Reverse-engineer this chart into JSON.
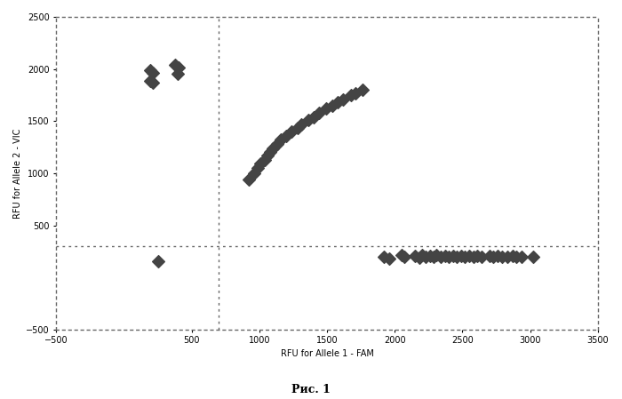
{
  "title": "Рис. 1",
  "xlabel": "RFU for Allele 1 - FAM",
  "ylabel": "RFU for Allele 2 - VIC",
  "xlim": [
    -500,
    3500
  ],
  "ylim": [
    -500,
    2500
  ],
  "xticks": [
    -500,
    500,
    1000,
    1500,
    2000,
    2500,
    3000,
    3500
  ],
  "yticks": [
    -500,
    500,
    1000,
    1500,
    2000,
    2500
  ],
  "hline": 300,
  "vline": 700,
  "scatter_color": "#444444",
  "markersize": 7,
  "cluster1": [
    [
      195,
      1990
    ],
    [
      210,
      1960
    ],
    [
      195,
      1890
    ],
    [
      210,
      1870
    ],
    [
      380,
      2040
    ],
    [
      400,
      2010
    ],
    [
      395,
      1950
    ]
  ],
  "cluster2": [
    [
      920,
      940
    ],
    [
      960,
      1000
    ],
    [
      990,
      1050
    ],
    [
      1010,
      1090
    ],
    [
      1040,
      1130
    ],
    [
      1060,
      1170
    ],
    [
      1080,
      1200
    ],
    [
      1100,
      1240
    ],
    [
      1130,
      1280
    ],
    [
      1160,
      1320
    ],
    [
      1200,
      1360
    ],
    [
      1240,
      1400
    ],
    [
      1280,
      1430
    ],
    [
      1310,
      1470
    ],
    [
      1360,
      1510
    ],
    [
      1400,
      1540
    ],
    [
      1440,
      1580
    ],
    [
      1490,
      1620
    ],
    [
      1540,
      1650
    ],
    [
      1580,
      1680
    ],
    [
      1620,
      1710
    ],
    [
      1680,
      1750
    ],
    [
      1710,
      1770
    ],
    [
      1760,
      1800
    ]
  ],
  "cluster3": [
    [
      1920,
      195
    ],
    [
      1960,
      180
    ],
    [
      2050,
      215
    ],
    [
      2070,
      195
    ],
    [
      2150,
      205
    ],
    [
      2180,
      190
    ],
    [
      2200,
      215
    ],
    [
      2230,
      200
    ],
    [
      2260,
      210
    ],
    [
      2290,
      200
    ],
    [
      2310,
      215
    ],
    [
      2340,
      195
    ],
    [
      2370,
      205
    ],
    [
      2400,
      200
    ],
    [
      2430,
      210
    ],
    [
      2460,
      195
    ],
    [
      2490,
      205
    ],
    [
      2520,
      200
    ],
    [
      2550,
      210
    ],
    [
      2580,
      195
    ],
    [
      2610,
      205
    ],
    [
      2640,
      200
    ],
    [
      2700,
      210
    ],
    [
      2730,
      195
    ],
    [
      2760,
      205
    ],
    [
      2790,
      200
    ],
    [
      2830,
      200
    ],
    [
      2870,
      205
    ],
    [
      2900,
      200
    ],
    [
      2940,
      195
    ],
    [
      3020,
      200
    ]
  ],
  "outlier": [
    250,
    155
  ],
  "background_color": "#ffffff",
  "grid_color": "#666666",
  "figure_width": 7.0,
  "figure_height": 4.49,
  "dpi": 100
}
